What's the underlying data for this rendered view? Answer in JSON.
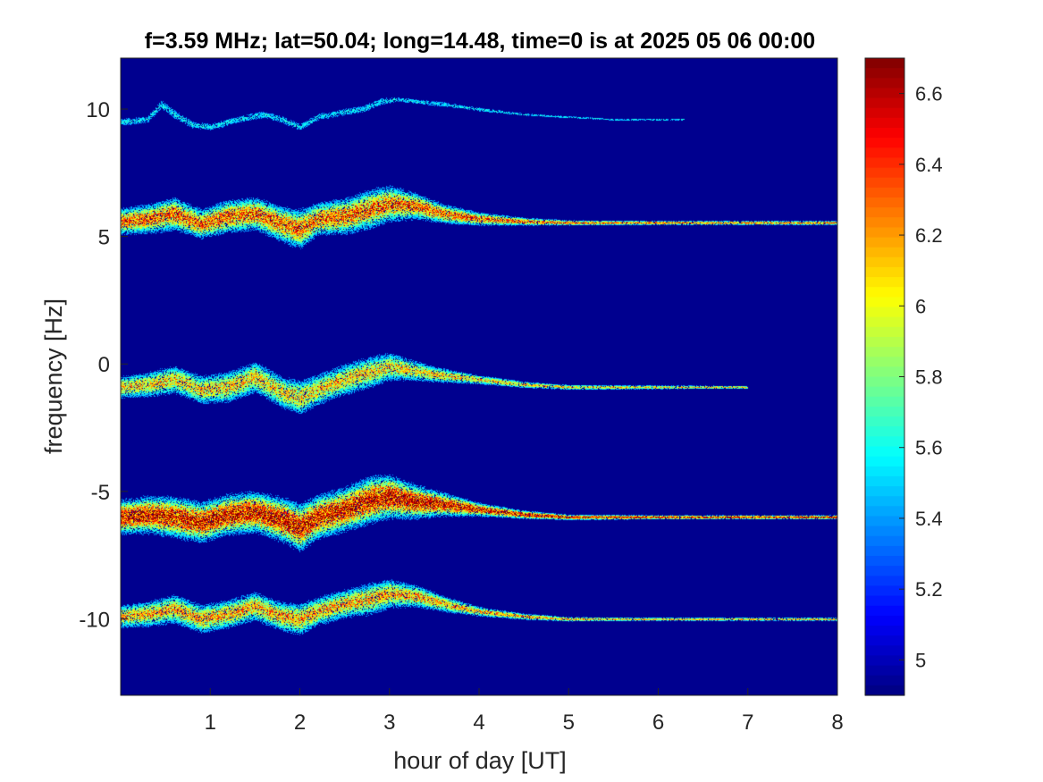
{
  "chart_data": {
    "type": "heatmap",
    "title": "f=3.59 MHz;  lat=50.04; long=14.48, time=0 is at 2025 05 06 00:00",
    "xlabel": "hour of day [UT]",
    "ylabel": "frequency [Hz]",
    "xlim": [
      0,
      8
    ],
    "ylim": [
      -13,
      12
    ],
    "xticks": [
      1,
      2,
      3,
      4,
      5,
      6,
      7,
      8
    ],
    "xtick_labels": [
      "1",
      "2",
      "3",
      "4",
      "5",
      "6",
      "7",
      "8"
    ],
    "yticks": [
      10,
      5,
      0,
      -5,
      -10
    ],
    "ytick_labels": [
      "10",
      "5",
      "0",
      "-5",
      "-10"
    ],
    "colorbar": {
      "range": [
        4.9,
        6.7
      ],
      "ticks": [
        6.6,
        6.4,
        6.2,
        6,
        5.8,
        5.6,
        5.4,
        5.2,
        5
      ],
      "tick_labels": [
        "6.6",
        "6.4",
        "6.2",
        "6",
        "5.8",
        "5.6",
        "5.4",
        "5.2",
        "5"
      ],
      "colormap": "jet"
    },
    "background_color": "#00008F",
    "grid": false,
    "traces": [
      {
        "base_frequency": 9.5,
        "intensity": 0.35,
        "x": [
          0,
          0.3,
          0.45,
          0.6,
          0.8,
          1.0,
          1.3,
          1.6,
          1.8,
          2.0,
          2.2,
          2.5,
          2.7,
          2.9,
          3.1,
          3.3,
          3.6,
          4.0,
          4.5,
          5.0,
          5.5,
          6.0,
          6.3
        ],
        "y": [
          9.5,
          9.6,
          10.2,
          9.8,
          9.4,
          9.3,
          9.6,
          9.8,
          9.6,
          9.3,
          9.7,
          9.9,
          10.0,
          10.3,
          10.4,
          10.3,
          10.2,
          10.0,
          9.8,
          9.7,
          9.6,
          9.6,
          9.6
        ],
        "spread": [
          0.15,
          0.15,
          0.2,
          0.2,
          0.15,
          0.15,
          0.15,
          0.15,
          0.15,
          0.15,
          0.15,
          0.15,
          0.15,
          0.15,
          0.1,
          0.1,
          0.1,
          0.08,
          0.05,
          0.05,
          0.04,
          0.04,
          0.03
        ]
      },
      {
        "base_frequency": 5.5,
        "intensity": 0.85,
        "x": [
          0,
          0.3,
          0.6,
          0.9,
          1.2,
          1.5,
          1.8,
          2.0,
          2.2,
          2.5,
          2.8,
          3.0,
          3.3,
          3.6,
          4.0,
          4.5,
          5.0,
          6.0,
          7.0,
          8.0
        ],
        "y": [
          5.6,
          5.7,
          5.9,
          5.5,
          5.8,
          5.9,
          5.5,
          5.3,
          5.7,
          5.8,
          6.1,
          6.3,
          6.2,
          5.9,
          5.7,
          5.6,
          5.55,
          5.55,
          5.55,
          5.55
        ],
        "spread": [
          0.4,
          0.45,
          0.5,
          0.45,
          0.5,
          0.5,
          0.55,
          0.6,
          0.5,
          0.55,
          0.6,
          0.55,
          0.4,
          0.3,
          0.2,
          0.12,
          0.08,
          0.06,
          0.06,
          0.06
        ]
      },
      {
        "base_frequency": -1.0,
        "intensity": 0.7,
        "x": [
          0,
          0.3,
          0.6,
          0.9,
          1.2,
          1.5,
          1.8,
          2.0,
          2.2,
          2.5,
          2.8,
          3.0,
          3.2,
          3.5,
          4.0,
          4.5,
          5.0,
          6.0,
          7.0
        ],
        "y": [
          -0.9,
          -0.8,
          -0.6,
          -1.0,
          -0.9,
          -0.5,
          -1.1,
          -1.3,
          -1.0,
          -0.6,
          -0.3,
          -0.1,
          -0.2,
          -0.4,
          -0.6,
          -0.8,
          -0.9,
          -0.9,
          -0.9
        ],
        "spread": [
          0.35,
          0.4,
          0.45,
          0.45,
          0.5,
          0.5,
          0.5,
          0.55,
          0.5,
          0.5,
          0.5,
          0.45,
          0.35,
          0.25,
          0.15,
          0.1,
          0.08,
          0.06,
          0.05
        ]
      },
      {
        "base_frequency": -6.0,
        "intensity": 1.0,
        "x": [
          0,
          0.3,
          0.6,
          0.9,
          1.2,
          1.5,
          1.8,
          2.0,
          2.2,
          2.5,
          2.8,
          3.0,
          3.3,
          3.6,
          4.0,
          4.5,
          5.0,
          6.0,
          7.0,
          8.0
        ],
        "y": [
          -6.0,
          -5.9,
          -6.0,
          -6.2,
          -5.9,
          -5.8,
          -6.1,
          -6.4,
          -6.0,
          -5.7,
          -5.3,
          -5.2,
          -5.4,
          -5.5,
          -5.7,
          -5.9,
          -6.0,
          -6.0,
          -6.0,
          -6.0
        ],
        "spread": [
          0.5,
          0.55,
          0.6,
          0.6,
          0.6,
          0.6,
          0.65,
          0.7,
          0.65,
          0.65,
          0.7,
          0.65,
          0.5,
          0.35,
          0.2,
          0.12,
          0.08,
          0.06,
          0.06,
          0.06
        ]
      },
      {
        "base_frequency": -10.0,
        "intensity": 0.75,
        "x": [
          0,
          0.3,
          0.6,
          0.9,
          1.2,
          1.5,
          1.8,
          2.0,
          2.2,
          2.5,
          2.8,
          3.0,
          3.3,
          3.6,
          4.0,
          4.5,
          5.0,
          6.0,
          7.0,
          8.0
        ],
        "y": [
          -9.9,
          -9.8,
          -9.6,
          -10.0,
          -9.8,
          -9.5,
          -9.9,
          -10.0,
          -9.7,
          -9.4,
          -9.2,
          -9.0,
          -9.1,
          -9.4,
          -9.7,
          -9.9,
          -10.0,
          -10.0,
          -10.0,
          -10.0
        ],
        "spread": [
          0.35,
          0.4,
          0.45,
          0.45,
          0.45,
          0.45,
          0.45,
          0.5,
          0.45,
          0.45,
          0.5,
          0.45,
          0.35,
          0.25,
          0.15,
          0.1,
          0.07,
          0.05,
          0.05,
          0.05
        ]
      }
    ]
  }
}
